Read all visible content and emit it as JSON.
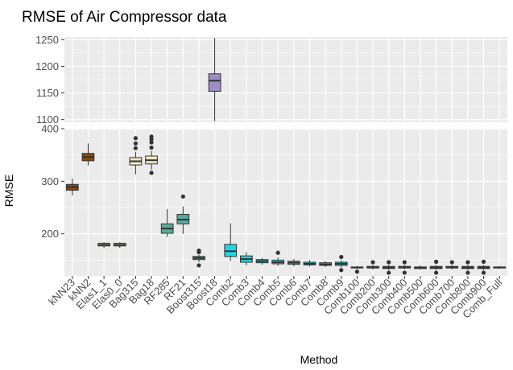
{
  "chart_data": {
    "type": "boxplot",
    "title": "RMSE of Air Compressor data",
    "xlabel": "Method",
    "ylabel": "RMSE",
    "y_panels": [
      {
        "range": [
          1095,
          1255
        ],
        "ticks": [
          1100,
          1150,
          1200,
          1250
        ]
      },
      {
        "range": [
          120,
          400
        ],
        "ticks": [
          200,
          300,
          400
        ]
      }
    ],
    "grid": true,
    "legend": "none",
    "boxes": [
      {
        "label": "kNN23",
        "q1": 283,
        "median": 289,
        "q3": 294,
        "lower": 273,
        "upper": 305,
        "outliers": [],
        "color": "#8b4a0c"
      },
      {
        "label": "kNN2",
        "q1": 339,
        "median": 346,
        "q3": 353,
        "lower": 330,
        "upper": 372,
        "outliers": [],
        "color": "#8b4a0c"
      },
      {
        "label": "Elas1_1",
        "q1": 177,
        "median": 179,
        "q3": 182,
        "lower": 173,
        "upper": 184,
        "outliers": [],
        "color": "#efe6c0"
      },
      {
        "label": "Elas0_0",
        "q1": 177,
        "median": 179,
        "q3": 182,
        "lower": 173,
        "upper": 184,
        "outliers": [],
        "color": "#efe6c0"
      },
      {
        "label": "Bag315",
        "q1": 331,
        "median": 338,
        "q3": 345,
        "lower": 313,
        "upper": 356,
        "outliers": [
          363,
          372,
          382
        ],
        "color": "#efe6c0"
      },
      {
        "label": "Bag18",
        "q1": 333,
        "median": 340,
        "q3": 348,
        "lower": 322,
        "upper": 358,
        "outliers": [
          316,
          364,
          374,
          380,
          385
        ],
        "color": "#efe6c0"
      },
      {
        "label": "RF285",
        "q1": 201,
        "median": 210,
        "q3": 219,
        "lower": 194,
        "upper": 247,
        "outliers": [],
        "color": "#5aab9c"
      },
      {
        "label": "RF21",
        "q1": 219,
        "median": 227,
        "q3": 237,
        "lower": 200,
        "upper": 252,
        "outliers": [
          271
        ],
        "color": "#5aab9c"
      },
      {
        "label": "Boost315",
        "q1": 151,
        "median": 154,
        "q3": 157,
        "lower": 146,
        "upper": 160,
        "outliers": [
          140,
          165,
          168
        ],
        "color": "#5aab9c"
      },
      {
        "label": "Boost18",
        "q1": 1153,
        "median": 1173,
        "q3": 1186,
        "lower": 1097,
        "upper": 1253,
        "outliers": [],
        "color": "#9c8ec4"
      },
      {
        "label": "Comb2",
        "q1": 157,
        "median": 167,
        "q3": 180,
        "lower": 148,
        "upper": 220,
        "outliers": [],
        "color": "#1fd6e6"
      },
      {
        "label": "Comb3",
        "q1": 146,
        "median": 152,
        "q3": 158,
        "lower": 140,
        "upper": 165,
        "outliers": [],
        "color": "#1fd6e6"
      },
      {
        "label": "Comb4",
        "q1": 145,
        "median": 148,
        "q3": 151,
        "lower": 141,
        "upper": 154,
        "outliers": [],
        "color": "#1fd6e6"
      },
      {
        "label": "Comb5",
        "q1": 143,
        "median": 146,
        "q3": 150,
        "lower": 139,
        "upper": 155,
        "outliers": [
          164
        ],
        "color": "#1fd6e6"
      },
      {
        "label": "Comb6",
        "q1": 142,
        "median": 145,
        "q3": 148,
        "lower": 138,
        "upper": 152,
        "outliers": [],
        "color": "#1fd6e6"
      },
      {
        "label": "Comb7",
        "q1": 141,
        "median": 143,
        "q3": 146,
        "lower": 138,
        "upper": 150,
        "outliers": [],
        "color": "#1fd6e6"
      },
      {
        "label": "Comb8",
        "q1": 140,
        "median": 142,
        "q3": 145,
        "lower": 137,
        "upper": 148,
        "outliers": [],
        "color": "#1fd6e6"
      },
      {
        "label": "Comb9",
        "q1": 140,
        "median": 143,
        "q3": 146,
        "lower": 136,
        "upper": 150,
        "outliers": [
          131,
          156
        ],
        "color": "#1fd6e6"
      },
      {
        "label": "Comb100",
        "q1": 135,
        "median": 136,
        "q3": 137,
        "lower": 133,
        "upper": 139,
        "outliers": [
          128
        ],
        "color": "#1fd6e6"
      },
      {
        "label": "Comb200",
        "q1": 135,
        "median": 136,
        "q3": 138,
        "lower": 132,
        "upper": 141,
        "outliers": [
          146
        ],
        "color": "#1fd6e6"
      },
      {
        "label": "Comb300",
        "q1": 134,
        "median": 136,
        "q3": 138,
        "lower": 131,
        "upper": 141,
        "outliers": [
          126,
          146
        ],
        "color": "#1fd6e6"
      },
      {
        "label": "Comb400",
        "q1": 135,
        "median": 136,
        "q3": 138,
        "lower": 132,
        "upper": 141,
        "outliers": [
          126,
          146
        ],
        "color": "#1fd6e6"
      },
      {
        "label": "Comb500",
        "q1": 134,
        "median": 136,
        "q3": 137,
        "lower": 132,
        "upper": 140,
        "outliers": [],
        "color": "#1fd6e6"
      },
      {
        "label": "Comb600",
        "q1": 134,
        "median": 136,
        "q3": 138,
        "lower": 131,
        "upper": 141,
        "outliers": [
          126,
          147
        ],
        "color": "#1fd6e6"
      },
      {
        "label": "Comb700",
        "q1": 135,
        "median": 136,
        "q3": 138,
        "lower": 132,
        "upper": 141,
        "outliers": [
          146
        ],
        "color": "#1fd6e6"
      },
      {
        "label": "Comb800",
        "q1": 134,
        "median": 136,
        "q3": 138,
        "lower": 131,
        "upper": 141,
        "outliers": [
          126,
          146
        ],
        "color": "#1fd6e6"
      },
      {
        "label": "Comb900",
        "q1": 134,
        "median": 136,
        "q3": 138,
        "lower": 131,
        "upper": 141,
        "outliers": [
          126,
          147
        ],
        "color": "#1fd6e6"
      },
      {
        "label": "Comb_Full",
        "q1": 135,
        "median": 136,
        "q3": 137,
        "lower": 133,
        "upper": 139,
        "outliers": [],
        "color": "#1fd6e6"
      }
    ]
  }
}
